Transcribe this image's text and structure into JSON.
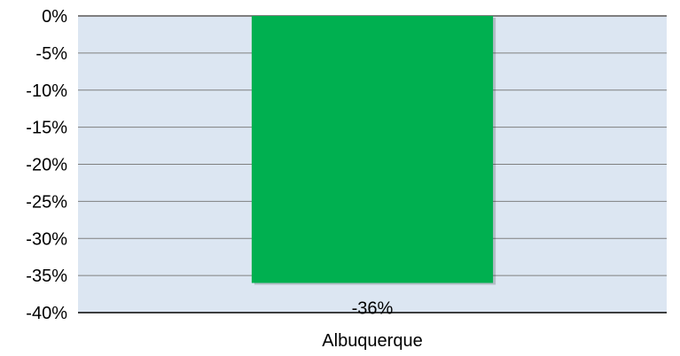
{
  "chart_data": {
    "type": "bar",
    "categories": [
      "Albuquerque"
    ],
    "values": [
      -36
    ],
    "data_labels": [
      "-36%"
    ],
    "ylim": [
      -40,
      0
    ],
    "y_ticks": [
      0,
      -5,
      -10,
      -15,
      -20,
      -25,
      -30,
      -35,
      -40
    ],
    "y_tick_labels": [
      "0%",
      "-5%",
      "-10%",
      "-15%",
      "-20%",
      "-25%",
      "-30%",
      "-35%",
      "-40%"
    ],
    "title": "",
    "xlabel": "",
    "ylabel": "",
    "grid": true,
    "legend": "none",
    "colors": {
      "bar": "#00b050",
      "plot_background": "#dce6f2",
      "gridline": "#7f7f7f",
      "axis_line": "#000000"
    }
  }
}
